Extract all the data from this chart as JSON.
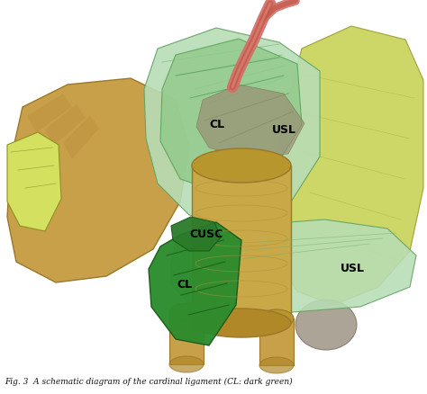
{
  "labels": {
    "CL_upper": "CL",
    "USL_upper": "USL",
    "CUSC": "CUSC",
    "CL_lower": "CL",
    "USL_lower": "USL"
  },
  "colors": {
    "light_green_structure": "#90c98a",
    "light_green_fan": "#b8ddb5",
    "dark_green_CL": "#2a7a2a",
    "dark_green_CL_lower": "#2d8c2d",
    "yellow_green_tissue": "#c8d45a",
    "yellow_green_flap": "#d4e060",
    "tan_body": "#c8a04a",
    "tan_cylinder": "#c9a848",
    "tan_cylinder_top": "#b8962e",
    "pink_vessel": "#d4706a",
    "salmon_vessel": "#c86050",
    "gray_tissue": "#9a8870",
    "dark_outline": "#3a3a2a",
    "background": "#ffffff",
    "caption_color": "#111111"
  },
  "caption": "Fig. 3  A schematic diagram of the cardinal ligament (CL: dark green)",
  "figsize": [
    4.74,
    4.39
  ],
  "dpi": 100
}
